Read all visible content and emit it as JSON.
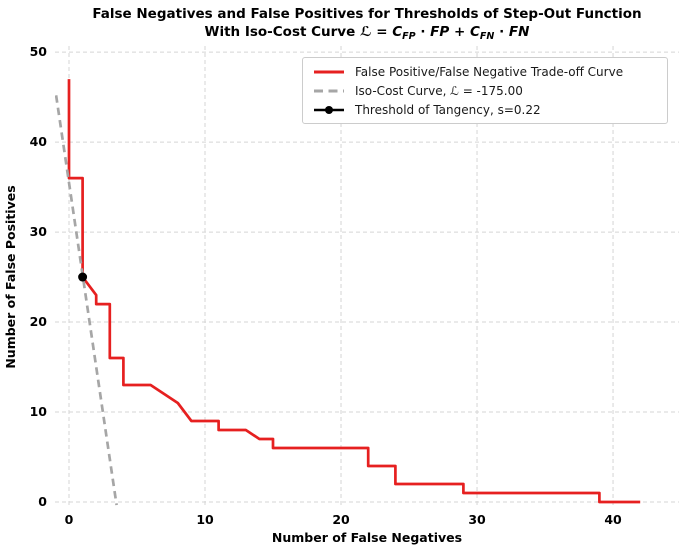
{
  "title": {
    "line1": "False Negatives and False Positives for Thresholds of Step-Out Function",
    "line2": {
      "prefix": "With Iso-Cost Curve ",
      "script_l": "ℒ",
      "equals": " = ",
      "c1": "C",
      "c1_sub": "FP",
      "dot1": " · ",
      "fp": "FP",
      "plus": " + ",
      "c2": "C",
      "c2_sub": "FN",
      "dot2": " · ",
      "fn": "FN"
    }
  },
  "axes": {
    "x_label": "Number of False Negatives",
    "y_label": "Number of False Positives"
  },
  "legend": {
    "items": [
      {
        "label": "False Positive/False Negative Trade-off Curve",
        "swatch": "red-solid-line"
      },
      {
        "label_pre": "Iso-Cost Curve, ",
        "label_math": "ℒ",
        "label_post": " = -175.00",
        "swatch": "gray-dashed-line"
      },
      {
        "label": "Threshold of Tangency, s=0.22",
        "swatch": "black-line-dot-marker"
      }
    ]
  },
  "chart_data": {
    "type": "line",
    "title": "False Negatives and False Positives for Thresholds of Step-Out Function With Iso-Cost Curve L = C_FP · FP + C_FN · FN",
    "xlabel": "Number of False Negatives",
    "ylabel": "Number of False Positives",
    "xlim": [
      -1.03,
      44.85
    ],
    "ylim": [
      -0.667,
      50.68
    ],
    "x_ticks": [
      0,
      10,
      20,
      30,
      40
    ],
    "y_ticks": [
      0,
      10,
      20,
      30,
      40,
      50
    ],
    "grid": true,
    "grid_color": "#d5d5d5",
    "legend_position": "upper right",
    "series": [
      {
        "name": "False Positive/False Negative Trade-off Curve",
        "color": "#e62020",
        "style": "solid",
        "points": [
          [
            0,
            47
          ],
          [
            0,
            36
          ],
          [
            1,
            36
          ],
          [
            1,
            25
          ],
          [
            2,
            23
          ],
          [
            2,
            22
          ],
          [
            3,
            22
          ],
          [
            3,
            16
          ],
          [
            4,
            16
          ],
          [
            4,
            13
          ],
          [
            6,
            13
          ],
          [
            8,
            11
          ],
          [
            9,
            9
          ],
          [
            11,
            9
          ],
          [
            11,
            8
          ],
          [
            13,
            8
          ],
          [
            14,
            7
          ],
          [
            15,
            7
          ],
          [
            15,
            6
          ],
          [
            22,
            6
          ],
          [
            22,
            4
          ],
          [
            24,
            4
          ],
          [
            24,
            2
          ],
          [
            29,
            2
          ],
          [
            29,
            1
          ],
          [
            39,
            1
          ],
          [
            39,
            0
          ],
          [
            42,
            0
          ]
        ]
      },
      {
        "name": "Iso-Cost Curve, ℒ = -175.00",
        "color": "#a6a6a6",
        "style": "dashed",
        "points": [
          [
            -0.95,
            45.2
          ],
          [
            3.5,
            -0.35
          ]
        ]
      },
      {
        "name": "Threshold of Tangency, s=0.22",
        "color": "#000000",
        "style": "point",
        "points": [
          [
            1,
            25
          ]
        ]
      }
    ]
  },
  "colors": {
    "red_curve": "#e62020",
    "iso_cost_gray": "#a6a6a6",
    "marker_black": "#000000",
    "grid": "#d5d5d5",
    "legend_border": "#cccccc"
  }
}
